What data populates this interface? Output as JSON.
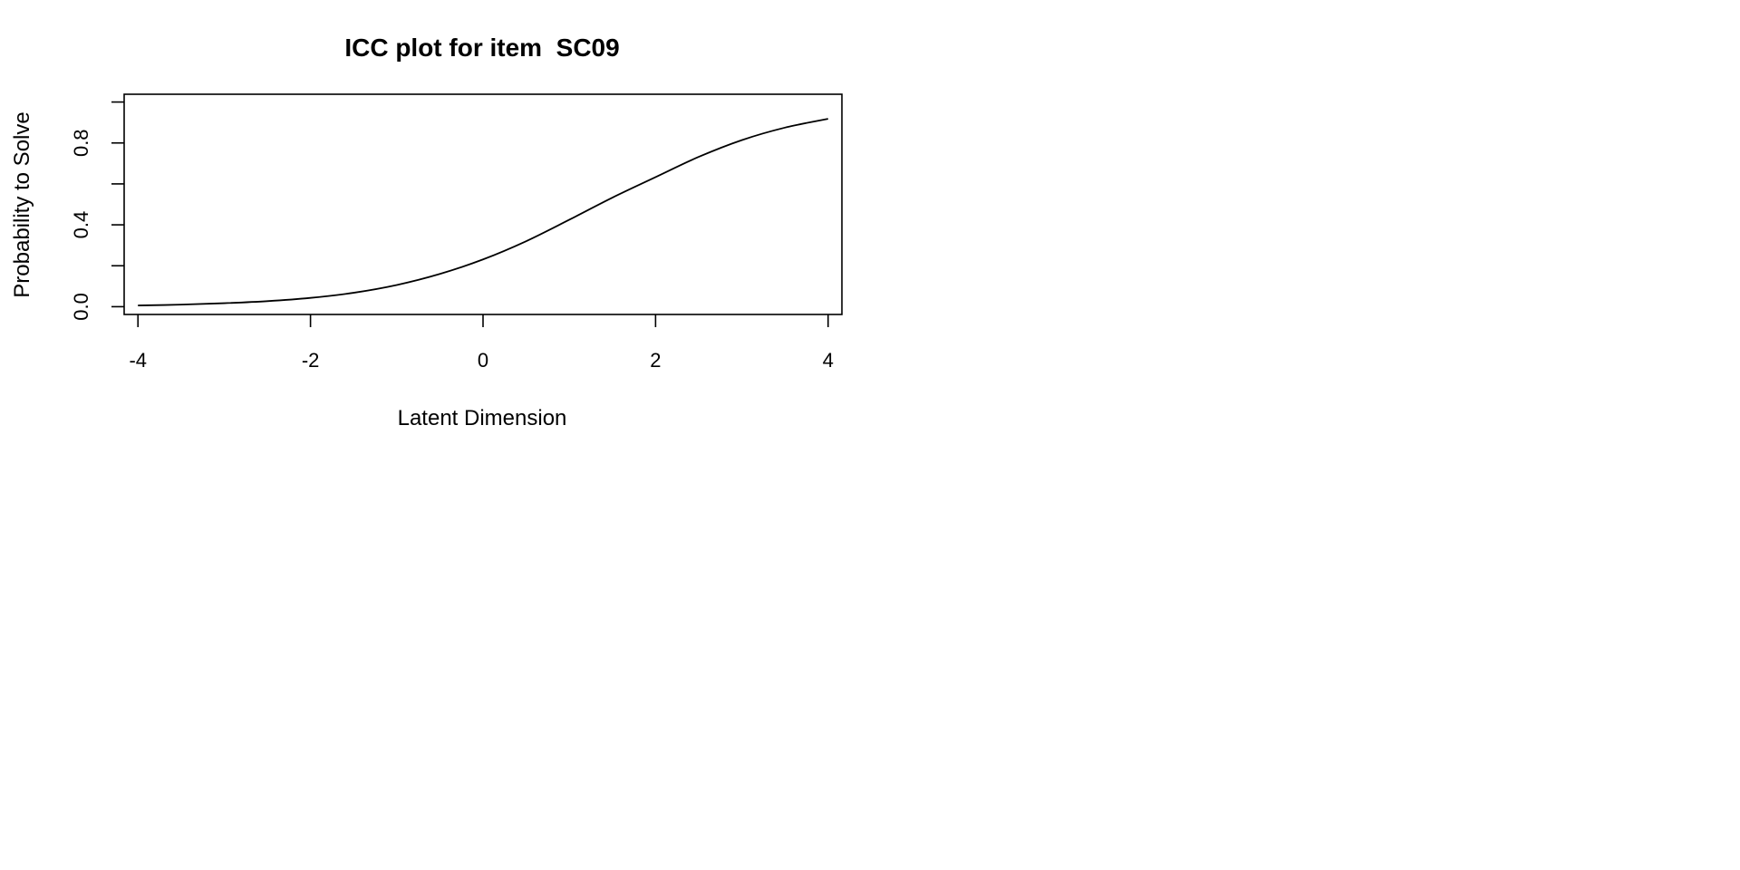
{
  "chart_data": {
    "type": "line",
    "title": "ICC plot for item  SC09",
    "xlabel": "Latent Dimension",
    "ylabel": "Probability to Solve",
    "xlim": [
      -4.16,
      4.16
    ],
    "ylim": [
      -0.038,
      1.038
    ],
    "x_ticks": [
      -4,
      -2,
      0,
      2,
      4
    ],
    "x_tick_labels": [
      "-4",
      "-2",
      "0",
      "2",
      "4"
    ],
    "y_ticks": [
      0,
      0.2,
      0.4,
      0.6,
      0.8,
      1.0
    ],
    "y_tick_labels": [
      "0.0",
      "",
      "0.4",
      "",
      "0.8",
      ""
    ],
    "grid": false,
    "legend": false,
    "series": [
      {
        "x": [
          -4,
          -3.5,
          -3,
          -2.5,
          -2,
          -1.5,
          -1,
          -0.5,
          0,
          0.5,
          1,
          1.5,
          2,
          2.5,
          3,
          3.5,
          4
        ],
        "values": [
          0.006,
          0.01,
          0.017,
          0.027,
          0.043,
          0.068,
          0.106,
          0.16,
          0.231,
          0.32,
          0.425,
          0.533,
          0.633,
          0.732,
          0.814,
          0.875,
          0.918
        ],
        "color": "#000000"
      }
    ]
  }
}
